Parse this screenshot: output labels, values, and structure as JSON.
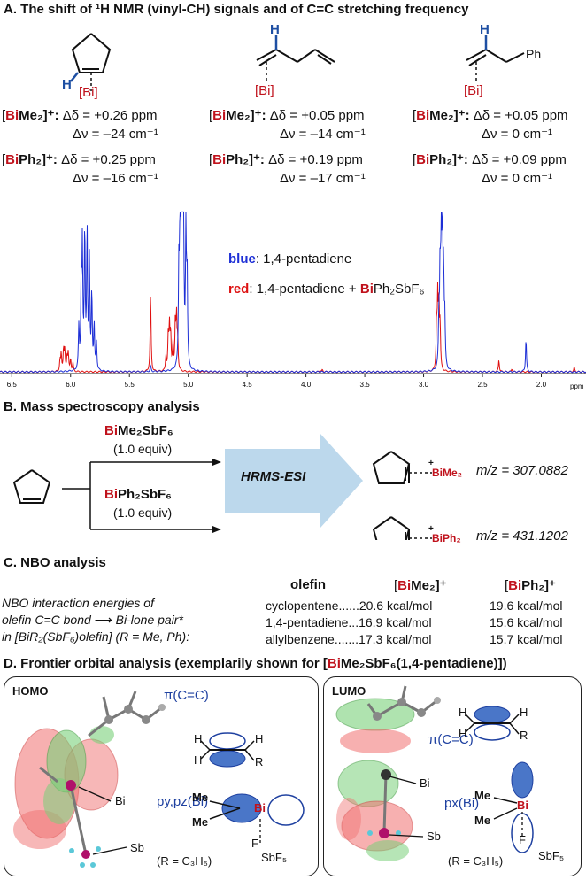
{
  "sectionA": {
    "title": "A. The shift of ¹H NMR (vinyl-CH) signals and of C=C stretching frequency",
    "compounds": [
      {
        "label_h": "H",
        "bi_label": "[Bi]",
        "rows": [
          {
            "reagent_prefix": "[",
            "reagent_bi": "Bi",
            "reagent_rest": "Me₂]⁺:",
            "dd": "Δδ = +0.26 ppm",
            "dv": "Δν = –24 cm⁻¹"
          },
          {
            "reagent_prefix": "[",
            "reagent_bi": "Bi",
            "reagent_rest": "Ph₂]⁺:",
            "dd": "Δδ = +0.25 ppm",
            "dv": "Δν = –16 cm⁻¹"
          }
        ]
      },
      {
        "label_h": "H",
        "bi_label": "[Bi]",
        "rows": [
          {
            "reagent_prefix": "[",
            "reagent_bi": "Bi",
            "reagent_rest": "Me₂]⁺:",
            "dd": "Δδ = +0.05 ppm",
            "dv": "Δν = –14 cm⁻¹"
          },
          {
            "reagent_prefix": "[",
            "reagent_bi": "Bi",
            "reagent_rest": "Ph₂]⁺:",
            "dd": "Δδ = +0.19 ppm",
            "dv": "Δν = –17 cm⁻¹"
          }
        ]
      },
      {
        "label_h": "H",
        "label_ph": "Ph",
        "bi_label": "[Bi]",
        "rows": [
          {
            "reagent_prefix": "[",
            "reagent_bi": "Bi",
            "reagent_rest": "Me₂]⁺:",
            "dd": "Δδ = +0.05 ppm",
            "dv": "Δν = 0 cm⁻¹"
          },
          {
            "reagent_prefix": "[",
            "reagent_bi": "Bi",
            "reagent_rest": "Ph₂]⁺:",
            "dd": "Δδ = +0.09 ppm",
            "dv": "Δν = 0 cm⁻¹"
          }
        ]
      }
    ],
    "legend": {
      "blue_word": "blue",
      "blue_text": ": 1,4-pentadiene",
      "red_word": "red",
      "red_text": ": 1,4-pentadiene + ",
      "red_bi": "Bi",
      "red_rest": "Ph₂SbF₆"
    },
    "colors": {
      "blue": "#1d2fd6",
      "red": "#e01010",
      "bi": "#c0121c"
    }
  },
  "chart_data": {
    "type": "line",
    "xlabel": "ppm",
    "x_ticks": [
      "6.5",
      "6.0",
      "5.5",
      "5.0",
      "4.5",
      "4.0",
      "3.5",
      "3.0",
      "2.5",
      "2.0"
    ],
    "xlim": [
      6.6,
      1.62
    ],
    "x_reversed": true,
    "series": [
      {
        "name": "blue",
        "color": "#1d2fd6",
        "peaks": [
          [
            5.93,
            0.28
          ],
          [
            5.91,
            0.55
          ],
          [
            5.9,
            0.78
          ],
          [
            5.88,
            0.92
          ],
          [
            5.86,
            0.9
          ],
          [
            5.84,
            0.72
          ],
          [
            5.82,
            0.5
          ],
          [
            5.8,
            0.3
          ],
          [
            5.78,
            0.18
          ],
          [
            5.32,
            0.04
          ],
          [
            5.08,
            0.62
          ],
          [
            5.07,
            0.9
          ],
          [
            5.06,
            0.98
          ],
          [
            5.05,
            1.0
          ],
          [
            5.04,
            0.94
          ],
          [
            5.02,
            0.86
          ],
          [
            5.01,
            0.6
          ],
          [
            2.87,
            0.32
          ],
          [
            2.86,
            0.62
          ],
          [
            2.85,
            0.88
          ],
          [
            2.84,
            0.84
          ],
          [
            2.83,
            0.58
          ],
          [
            2.82,
            0.3
          ],
          [
            2.13,
            0.22
          ]
        ]
      },
      {
        "name": "red",
        "color": "#e01010",
        "peaks": [
          [
            6.09,
            0.07
          ],
          [
            6.08,
            0.11
          ],
          [
            6.06,
            0.15
          ],
          [
            6.05,
            0.13
          ],
          [
            6.03,
            0.1
          ],
          [
            6.02,
            0.12
          ],
          [
            6.0,
            0.08
          ],
          [
            5.98,
            0.06
          ],
          [
            5.32,
            0.52
          ],
          [
            5.19,
            0.1
          ],
          [
            5.17,
            0.22
          ],
          [
            5.16,
            0.28
          ],
          [
            5.15,
            0.24
          ],
          [
            5.13,
            0.18
          ],
          [
            5.11,
            0.3
          ],
          [
            5.1,
            0.34
          ],
          [
            5.09,
            0.2
          ],
          [
            3.88,
            0.012
          ],
          [
            3.86,
            0.012
          ],
          [
            2.89,
            0.3
          ],
          [
            2.88,
            0.45
          ],
          [
            2.87,
            0.42
          ],
          [
            2.86,
            0.28
          ],
          [
            2.36,
            0.08
          ],
          [
            2.25,
            0.02
          ],
          [
            1.72,
            0.03
          ]
        ]
      }
    ]
  },
  "sectionB": {
    "title": "B. Mass spectroscopy analysis",
    "reagent1_bi": "Bi",
    "reagent1_rest": "Me₂SbF₆",
    "reagent1_equiv": "(1.0 equiv)",
    "reagent2_bi": "Bi",
    "reagent2_rest": "Ph₂SbF₆",
    "reagent2_equiv": "(1.0 equiv)",
    "method": "HRMS-ESI",
    "product1_label": "BiMe₂",
    "product1_mz": "m/z = 307.0882",
    "product2_label": "BiPh₂",
    "product2_mz": "m/z = 431.1202",
    "plus": "+"
  },
  "sectionC": {
    "title": "C. NBO analysis",
    "desc1": "NBO interaction energies of",
    "desc2a": "olefin C=C bond",
    "desc2b": "Bi-lone pair*",
    "desc3": "in [BiR₂(SbF₆)olefin] (R = Me, Ph):",
    "header_olefin": "olefin",
    "header_me_pre": "[",
    "header_me_bi": "Bi",
    "header_me_post": "Me₂]⁺",
    "header_ph_pre": "[",
    "header_ph_bi": "Bi",
    "header_ph_post": "Ph₂]⁺",
    "rows": [
      {
        "olefin": "cyclopentene......20.6 kcal/mol",
        "ph": "19.6 kcal/mol"
      },
      {
        "olefin": "1,4-pentadiene...16.9 kcal/mol",
        "ph": "15.6 kcal/mol"
      },
      {
        "olefin": "allylbenzene.......17.3 kcal/mol",
        "ph": "15.7 kcal/mol"
      }
    ]
  },
  "sectionD": {
    "title_pre": "D. Frontier orbital analysis (exemplarily shown for [",
    "title_bi": "Bi",
    "title_post": "Me₂SbF₆(1,4-pentadiene)])",
    "homo": {
      "title": "HOMO",
      "pi": "π(C=C)",
      "porb": "py,pz(Bi)",
      "bi_tag": "Bi",
      "sb_tag": "Sb",
      "r_note": "(R = C₃H₅)",
      "H1": "H",
      "H2": "H",
      "H3": "H",
      "R": "R",
      "Me1": "Me",
      "Me2": "Me",
      "Bi": "Bi",
      "F": "F",
      "SbF5": "SbF₅"
    },
    "lumo": {
      "title": "LUMO",
      "pi": "π(C=C)",
      "porb": "px(Bi)",
      "bi_tag": "Bi",
      "sb_tag": "Sb",
      "r_note": "(R = C₃H₅)",
      "H1": "H",
      "H2": "H",
      "H3": "H",
      "R": "R",
      "Me1": "Me",
      "Me2": "Me",
      "Bi": "Bi",
      "F": "F",
      "SbF5": "SbF₅"
    }
  }
}
